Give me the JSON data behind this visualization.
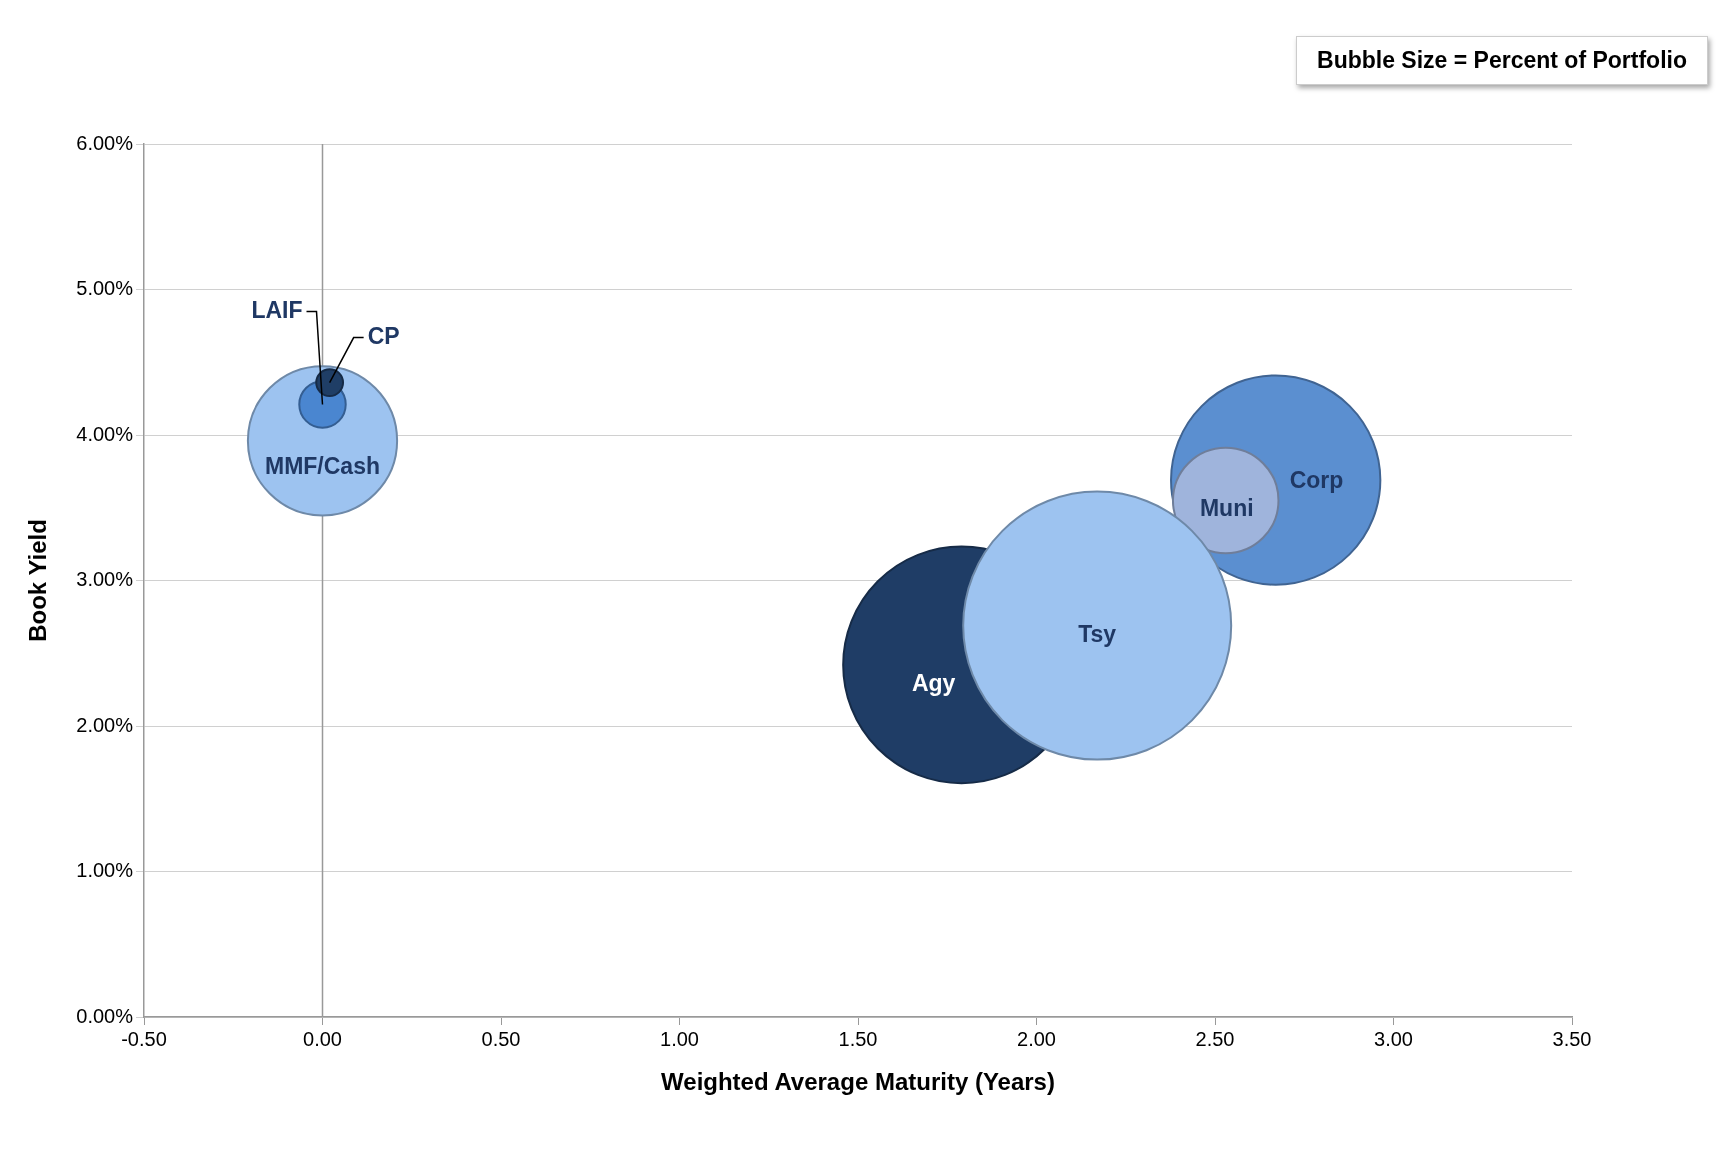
{
  "chart_data": {
    "type": "bubble",
    "xlabel": "Weighted Average Maturity (Years)",
    "ylabel": "Book Yield",
    "annotations": [
      "Bubble Size = Percent of Portfolio"
    ],
    "series": [
      {
        "name": "MMF/Cash",
        "color": "#9dc3f0",
        "x": [
          0.0
        ],
        "values": [
          3.96
        ],
        "sizes": [
          0.31
        ]
      },
      {
        "name": "LAIF",
        "color": "#4a86d0",
        "x": [
          0.0
        ],
        "values": [
          4.21
        ],
        "sizes": [
          0.03
        ]
      },
      {
        "name": "CP",
        "color": "#1f3e66",
        "x": [
          0.02
        ],
        "values": [
          4.36
        ],
        "sizes": [
          0.01
        ]
      },
      {
        "name": "Corp",
        "color": "#5b8fd0",
        "x": [
          2.67
        ],
        "values": [
          3.69
        ],
        "sizes": [
          0.61
        ]
      },
      {
        "name": "Muni",
        "color": "#9fb4dc",
        "x": [
          2.53
        ],
        "values": [
          3.55
        ],
        "sizes": [
          0.155
        ]
      },
      {
        "name": "Agy",
        "color": "#1f3d66",
        "x": [
          1.79
        ],
        "values": [
          2.42
        ],
        "sizes": [
          0.78
        ]
      },
      {
        "name": "Tsy",
        "color": "#9dc3f0",
        "x": [
          2.17
        ],
        "values": [
          2.69
        ],
        "sizes": [
          1
        ]
      }
    ],
    "xlim": [
      -0.5,
      3.5
    ],
    "xticks": [
      {
        "value": -0.5,
        "label": "-0.50"
      },
      {
        "value": 0,
        "label": "0.00"
      },
      {
        "value": 0.5,
        "label": "0.50"
      },
      {
        "value": 1,
        "label": "1.00"
      },
      {
        "value": 1.5,
        "label": "1.50"
      },
      {
        "value": 2,
        "label": "2.00"
      },
      {
        "value": 2.5,
        "label": "2.50"
      },
      {
        "value": 3,
        "label": "3.00"
      },
      {
        "value": 3.5,
        "label": "3.50"
      }
    ],
    "ylim": [
      0,
      6
    ],
    "yticks": [
      {
        "value": 0,
        "label": "0.00%"
      },
      {
        "value": 1,
        "label": "1.00%"
      },
      {
        "value": 2,
        "label": "2.00%"
      },
      {
        "value": 3,
        "label": "3.00%"
      },
      {
        "value": 4,
        "label": "4.00%"
      },
      {
        "value": 5,
        "label": "5.00%"
      },
      {
        "value": 6,
        "label": "6.00%"
      }
    ],
    "ref_lines": [
      {
        "axis": "x",
        "value": 0,
        "color": "#999999"
      }
    ],
    "grid": "y",
    "legend": false
  }
}
